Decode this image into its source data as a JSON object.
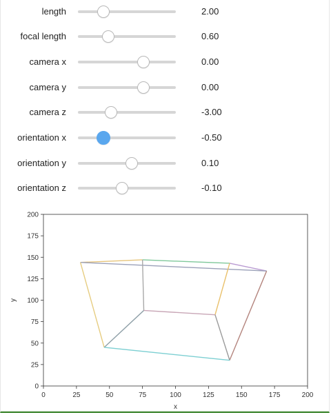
{
  "sliders": [
    {
      "label": "length",
      "value": "2.00",
      "position": 0.26,
      "active": false
    },
    {
      "label": "focal length",
      "value": "0.60",
      "position": 0.31,
      "active": false
    },
    {
      "label": "camera x",
      "value": "0.00",
      "position": 0.67,
      "active": false
    },
    {
      "label": "camera y",
      "value": "0.00",
      "position": 0.67,
      "active": false
    },
    {
      "label": "camera z",
      "value": "-3.00",
      "position": 0.34,
      "active": false
    },
    {
      "label": "orientation x",
      "value": "-0.50",
      "position": 0.26,
      "active": true
    },
    {
      "label": "orientation y",
      "value": "0.10",
      "position": 0.55,
      "active": false
    },
    {
      "label": "orientation z",
      "value": "-0.10",
      "position": 0.45,
      "active": false
    }
  ],
  "colors": {
    "slider_active": "#5aa7ee",
    "axes": "#333333",
    "frame_border": "#2f7d1f"
  },
  "chart_data": {
    "type": "line",
    "title": "",
    "xlabel": "x",
    "ylabel": "y",
    "xlim": [
      0,
      200
    ],
    "ylim": [
      0,
      200
    ],
    "xticks": [
      "0",
      "25",
      "50",
      "75",
      "100",
      "125",
      "150",
      "175",
      "200"
    ],
    "yticks": [
      "0",
      "25",
      "50",
      "75",
      "100",
      "125",
      "150",
      "175",
      "200"
    ],
    "grid": false,
    "segments": [
      {
        "x": [
          28,
          75
        ],
        "y": [
          144,
          147
        ],
        "color": "#e6c47a"
      },
      {
        "x": [
          75,
          141
        ],
        "y": [
          147,
          143
        ],
        "color": "#7fc89a"
      },
      {
        "x": [
          141,
          169
        ],
        "y": [
          143,
          134
        ],
        "color": "#b99ad2"
      },
      {
        "x": [
          28,
          169
        ],
        "y": [
          144,
          134
        ],
        "color": "#9aa0b8"
      },
      {
        "x": [
          28,
          46
        ],
        "y": [
          144,
          45
        ],
        "color": "#e6cc80"
      },
      {
        "x": [
          141,
          130
        ],
        "y": [
          143,
          83
        ],
        "color": "#e9c06a"
      },
      {
        "x": [
          169,
          141
        ],
        "y": [
          134,
          30
        ],
        "color": "#b4857e"
      },
      {
        "x": [
          75,
          76
        ],
        "y": [
          147,
          88
        ],
        "color": "#a9a9a9"
      },
      {
        "x": [
          76,
          130
        ],
        "y": [
          88,
          83
        ],
        "color": "#c8a6b6"
      },
      {
        "x": [
          76,
          46
        ],
        "y": [
          88,
          45
        ],
        "color": "#8fa0a8"
      },
      {
        "x": [
          130,
          141
        ],
        "y": [
          83,
          30
        ],
        "color": "#9a9a9a"
      },
      {
        "x": [
          46,
          141
        ],
        "y": [
          45,
          30
        ],
        "color": "#7ccfd2"
      }
    ]
  }
}
